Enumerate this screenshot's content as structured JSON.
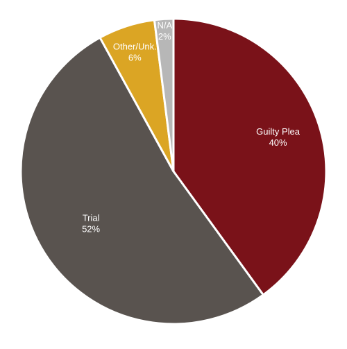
{
  "chart_data": {
    "type": "pie",
    "slices": [
      {
        "label": "Guilty Plea",
        "value": 40,
        "display": "40%",
        "color": "#7a1219"
      },
      {
        "label": "Trial",
        "value": 52,
        "display": "52%",
        "color": "#59534f"
      },
      {
        "label": "Other/Unk.",
        "value": 6,
        "display": "6%",
        "color": "#dba524"
      },
      {
        "label": "N/A",
        "value": 2,
        "display": "2%",
        "color": "#b7b7b7"
      }
    ],
    "start": "12 o'clock",
    "direction": "clockwise",
    "slice_border_color": "#ffffff"
  }
}
